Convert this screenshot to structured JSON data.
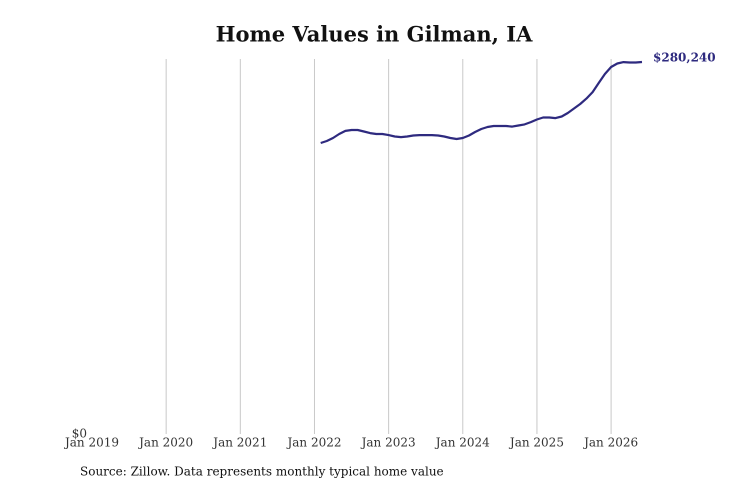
{
  "chart_data": {
    "type": "line",
    "title": "Home Values in Gilman, IA",
    "source": "Source: Zillow. Data represents monthly typical home value",
    "x": [
      "2022-02",
      "2022-03",
      "2022-04",
      "2022-05",
      "2022-06",
      "2022-07",
      "2022-08",
      "2022-09",
      "2022-10",
      "2022-11",
      "2022-12",
      "2023-01",
      "2023-02",
      "2023-03",
      "2023-04",
      "2023-05",
      "2023-06",
      "2023-07",
      "2023-08",
      "2023-09",
      "2023-10",
      "2023-11",
      "2023-12",
      "2024-01",
      "2024-02",
      "2024-03",
      "2024-04",
      "2024-05",
      "2024-06",
      "2024-07",
      "2024-08",
      "2024-09",
      "2024-10",
      "2024-11",
      "2024-12",
      "2025-01",
      "2025-02",
      "2025-03",
      "2025-04",
      "2025-05",
      "2025-06",
      "2025-07",
      "2025-08",
      "2025-09",
      "2025-10",
      "2025-11",
      "2025-12",
      "2026-01",
      "2026-02",
      "2026-03",
      "2026-04",
      "2026-05",
      "2026-06"
    ],
    "series": [
      {
        "name": "Home value",
        "color": "#2e2a7f",
        "values": [
          219200,
          220700,
          223000,
          226000,
          228300,
          229000,
          229000,
          227900,
          226700,
          226000,
          226000,
          225200,
          224100,
          223700,
          224100,
          224900,
          225200,
          225200,
          225200,
          224900,
          224100,
          223000,
          222200,
          223000,
          224900,
          227500,
          229800,
          231300,
          232000,
          232000,
          232000,
          231600,
          232400,
          233200,
          235000,
          236900,
          238400,
          238400,
          238000,
          239200,
          241800,
          245200,
          248600,
          252700,
          257600,
          264400,
          271200,
          276500,
          279100,
          280200,
          279900,
          279900,
          280240
        ],
        "value_labels": [
          null,
          null,
          null,
          null,
          null,
          null,
          null,
          null,
          null,
          null,
          null,
          null,
          null,
          null,
          null,
          null,
          null,
          null,
          null,
          null,
          null,
          null,
          null,
          null,
          null,
          null,
          null,
          null,
          null,
          null,
          null,
          null,
          null,
          null,
          null,
          null,
          null,
          null,
          null,
          null,
          null,
          null,
          null,
          null,
          null,
          null,
          null,
          null,
          null,
          null,
          null,
          null,
          "$280,240"
        ]
      }
    ],
    "xlim": [
      "2019-01",
      "2026-06"
    ],
    "xticks": [
      {
        "value": "2019-01",
        "label": "Jan 2019"
      },
      {
        "value": "2020-01",
        "label": "Jan 2020"
      },
      {
        "value": "2021-01",
        "label": "Jan 2021"
      },
      {
        "value": "2022-01",
        "label": "Jan 2022"
      },
      {
        "value": "2023-01",
        "label": "Jan 2023"
      },
      {
        "value": "2024-01",
        "label": "Jan 2024"
      },
      {
        "value": "2025-01",
        "label": "Jan 2025"
      },
      {
        "value": "2026-01",
        "label": "Jan 2026"
      }
    ],
    "ylim": [
      0,
      282500
    ],
    "yticks": [
      {
        "value": 0,
        "label": "$0"
      }
    ],
    "grid": "x"
  }
}
